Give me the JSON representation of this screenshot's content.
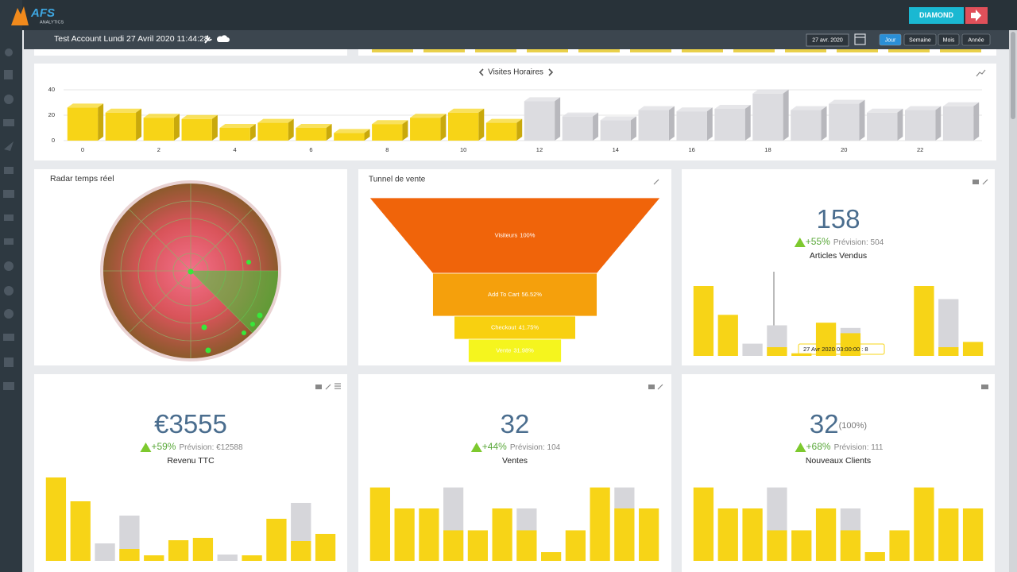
{
  "header": {
    "logo": "AFS",
    "logo_sub": "ANALYTICS",
    "account": "Test Account Lundi 27 Avril 2020 11:44:28",
    "plan": "DIAMOND",
    "date": "27 avr. 2020",
    "periods": [
      "Jour",
      "Semaine",
      "Mois",
      "Année"
    ]
  },
  "radar": {
    "title": "Radar temps réel"
  },
  "kpis": [
    {
      "value": "158",
      "delta": "+55%",
      "forecast": "Prévision: 504",
      "label": "Articles Vendus"
    },
    {
      "value": "€3555",
      "delta": "+59%",
      "forecast": "Prévision: €12588",
      "label": "Revenu TTC"
    },
    {
      "value": "32",
      "delta": "+44%",
      "forecast": "Prévision: 104",
      "label": "Ventes"
    },
    {
      "value": "32",
      "share": "(100%)",
      "delta": "+68%",
      "forecast": "Prévision: 111",
      "label": "Nouveaux Clients"
    }
  ],
  "chart_data": [
    {
      "type": "bar3d",
      "title": "Visites Horaires",
      "x": [
        0,
        1,
        2,
        3,
        4,
        5,
        6,
        7,
        8,
        9,
        10,
        11,
        12,
        13,
        14,
        15,
        16,
        17,
        18,
        19,
        20,
        21,
        22,
        23
      ],
      "values": [
        26,
        22,
        18,
        17,
        10,
        14,
        10,
        6,
        13,
        18,
        22,
        14,
        31,
        19,
        16,
        24,
        23,
        25,
        37,
        24,
        29,
        22,
        24,
        27
      ],
      "colors": [
        "#f7d417",
        "#f7d417",
        "#f7d417",
        "#f7d417",
        "#f7d417",
        "#f7d417",
        "#f7d417",
        "#f7d417",
        "#f7d417",
        "#f7d417",
        "#f7d417",
        "#f7d417",
        "#dcdce0",
        "#dcdce0",
        "#dcdce0",
        "#dcdce0",
        "#dcdce0",
        "#dcdce0",
        "#dcdce0",
        "#dcdce0",
        "#dcdce0",
        "#dcdce0",
        "#dcdce0",
        "#dcdce0"
      ],
      "xlim": [
        -0.5,
        23.5
      ],
      "xticks": [
        0,
        2,
        4,
        6,
        8,
        10,
        12,
        14,
        16,
        18,
        20,
        22
      ],
      "ylim": [
        0,
        40
      ],
      "yticks": [
        0,
        20,
        40
      ],
      "grid": true
    },
    {
      "type": "funnel",
      "title": "Tunnel de vente",
      "categories": [
        "Visiteurs",
        "Add To Cart",
        "Checkout",
        "Vente"
      ],
      "values": [
        100,
        56.52,
        41.75,
        31.98
      ],
      "value_labels": [
        "100%",
        "56.52%",
        "41.75%",
        "31.98%"
      ],
      "colors": [
        "#f0640a",
        "#f5a00c",
        "#f8d010",
        "#f5f51e"
      ]
    },
    {
      "type": "overlay-bar",
      "annotations": [
        "27 Avr 2020 03:00:00 : 8"
      ],
      "ylim": [
        0,
        100
      ],
      "series": [
        {
          "color": "#d6d6da",
          "values": [
            0,
            0,
            14,
            35,
            0,
            0,
            32,
            0,
            0,
            0,
            65,
            0
          ]
        },
        {
          "color": "#f7d417",
          "values": [
            80,
            47,
            0,
            10,
            3,
            38,
            26,
            0,
            0,
            80,
            10,
            16
          ]
        }
      ]
    },
    {
      "type": "overlay-bar",
      "ylim": [
        0,
        110
      ],
      "series": [
        {
          "color": "#d6d6da",
          "values": [
            0,
            0,
            22,
            57,
            0,
            0,
            0,
            8,
            0,
            0,
            73,
            0
          ]
        },
        {
          "color": "#f7d417",
          "values": [
            105,
            75,
            0,
            15,
            7,
            26,
            29,
            0,
            7,
            53,
            25,
            34
          ]
        }
      ]
    },
    {
      "type": "overlay-bar",
      "ylim": [
        0,
        100
      ],
      "series": [
        {
          "color": "#d6d6da",
          "values": [
            0,
            0,
            0,
            84,
            0,
            0,
            60,
            0,
            0,
            0,
            84,
            0
          ]
        },
        {
          "color": "#f7d417",
          "values": [
            84,
            60,
            60,
            35,
            35,
            60,
            35,
            10,
            35,
            84,
            60,
            60
          ]
        }
      ]
    },
    {
      "type": "overlay-bar",
      "ylim": [
        0,
        100
      ],
      "series": [
        {
          "color": "#d6d6da",
          "values": [
            0,
            0,
            0,
            84,
            0,
            0,
            60,
            0,
            0,
            0,
            0,
            0
          ]
        },
        {
          "color": "#f7d417",
          "values": [
            84,
            60,
            60,
            35,
            35,
            60,
            35,
            10,
            35,
            84,
            60,
            60
          ]
        }
      ]
    }
  ]
}
